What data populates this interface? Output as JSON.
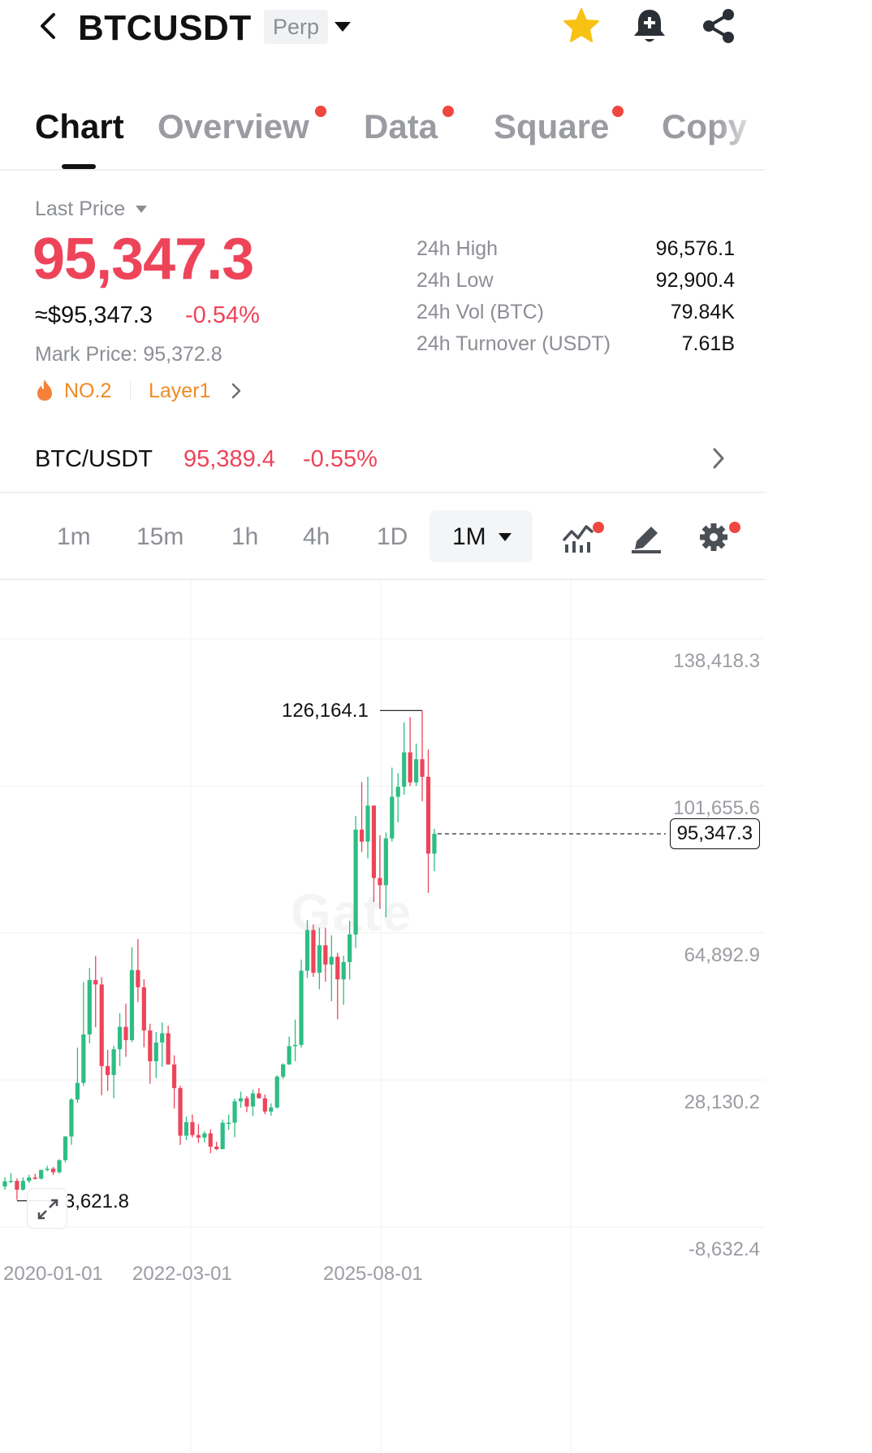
{
  "header": {
    "symbol": "BTCUSDT",
    "badge": "Perp",
    "icons": [
      "back-arrow-icon",
      "caret-down-icon",
      "star-icon",
      "bell-plus-icon",
      "share-icon"
    ],
    "star_color": "#f8c214"
  },
  "tabs": [
    {
      "label": "Chart",
      "active": true,
      "dot": false
    },
    {
      "label": "Overview",
      "active": false,
      "dot": true
    },
    {
      "label": "Data",
      "active": false,
      "dot": true
    },
    {
      "label": "Square",
      "active": false,
      "dot": true
    },
    {
      "label": "Copy",
      "active": false,
      "dot": false
    }
  ],
  "price": {
    "last_price_label": "Last Price",
    "last_price": "95,347.3",
    "usd_price": "≈$95,347.3",
    "change_pct": "-0.54%",
    "mark_price": "Mark Price:  95,372.8",
    "rank": "NO.2",
    "category": "Layer1"
  },
  "stats": [
    {
      "label": "24h High",
      "value": "96,576.1"
    },
    {
      "label": "24h Low",
      "value": "92,900.4"
    },
    {
      "label": "24h Vol (BTC)",
      "value": "79.84K"
    },
    {
      "label": "24h Turnover (USDT)",
      "value": "7.61B"
    }
  ],
  "spot": {
    "pair": "BTC/USDT",
    "price": "95,389.4",
    "change": "-0.55%"
  },
  "intervals": [
    "1m",
    "15m",
    "1h",
    "4h",
    "1D"
  ],
  "active_interval": "1M",
  "tools": [
    "indicators-icon",
    "draw-pencil-icon",
    "settings-gear-icon"
  ],
  "colors": {
    "up": "#2ebd85",
    "down": "#ee4459",
    "accent_orange": "#f08a24",
    "notification_dot": "#f0473f"
  },
  "chart": {
    "watermark": "Gate",
    "high_label": "126,164.1",
    "low_label": "3,621.8",
    "current_label": "95,347.3",
    "y_ticks": [
      "138,418.3",
      "101,655.6",
      "64,892.9",
      "28,130.2",
      "-8,632.4"
    ],
    "x_ticks": [
      "2020-01-01",
      "2022-03-01",
      "2025-08-01"
    ]
  },
  "chart_data": {
    "type": "candlestick",
    "interval": "1M",
    "y_ticks": [
      138418.3,
      101655.6,
      64892.9,
      28130.2,
      -8632.4
    ],
    "ylim": [
      -8632.4,
      138418.3
    ],
    "max_marker": 126164.1,
    "min_marker": 3621.8,
    "last_price": 95347.3,
    "x_ticks": [
      "2020-01-01",
      "2022-03-01",
      "2025-08-01"
    ],
    "candles": [
      [
        7200,
        9500,
        6400,
        8500
      ],
      [
        8500,
        10500,
        8100,
        8600
      ],
      [
        8600,
        9200,
        3850,
        6400
      ],
      [
        6400,
        9500,
        6200,
        8600
      ],
      [
        8600,
        10100,
        8100,
        9450
      ],
      [
        9450,
        10400,
        8900,
        9130
      ],
      [
        9130,
        11400,
        9000,
        11330
      ],
      [
        11330,
        12400,
        11000,
        11640
      ],
      [
        11640,
        12100,
        10100,
        10770
      ],
      [
        10770,
        14000,
        10400,
        13780
      ],
      [
        13780,
        19800,
        13200,
        19700
      ],
      [
        19700,
        29300,
        17600,
        28950
      ],
      [
        28950,
        41900,
        28100,
        33100
      ],
      [
        33100,
        58300,
        32300,
        45200
      ],
      [
        45200,
        61800,
        43000,
        58800
      ],
      [
        58800,
        64800,
        47000,
        57700
      ],
      [
        57700,
        59500,
        30000,
        37300
      ],
      [
        37300,
        41300,
        31100,
        35050
      ],
      [
        35050,
        42400,
        29300,
        41500
      ],
      [
        41500,
        50500,
        37300,
        47100
      ],
      [
        47100,
        52900,
        39600,
        43800
      ],
      [
        43800,
        67000,
        43300,
        61300
      ],
      [
        61300,
        69000,
        53300,
        57000
      ],
      [
        57000,
        59000,
        42000,
        46200
      ],
      [
        46200,
        47900,
        32900,
        38500
      ],
      [
        38500,
        45800,
        34300,
        43200
      ],
      [
        43200,
        48200,
        37100,
        45500
      ],
      [
        45500,
        47400,
        37600,
        37700
      ],
      [
        37700,
        40000,
        26700,
        31800
      ],
      [
        31800,
        32400,
        17600,
        19900
      ],
      [
        19900,
        24700,
        18800,
        23300
      ],
      [
        23300,
        25200,
        19500,
        20050
      ],
      [
        20050,
        22800,
        18100,
        19430
      ],
      [
        19430,
        21000,
        18200,
        20490
      ],
      [
        20490,
        21500,
        15500,
        17160
      ],
      [
        17160,
        18400,
        16300,
        16540
      ],
      [
        16540,
        23900,
        16500,
        23130
      ],
      [
        23130,
        25200,
        21400,
        23150
      ],
      [
        23150,
        29200,
        19500,
        28470
      ],
      [
        28470,
        30900,
        26900,
        29250
      ],
      [
        29250,
        29800,
        25800,
        27200
      ],
      [
        27200,
        31400,
        24800,
        30470
      ],
      [
        30470,
        31800,
        29500,
        29230
      ],
      [
        29230,
        30200,
        25300,
        25940
      ],
      [
        25940,
        28000,
        24900,
        26960
      ],
      [
        26960,
        35000,
        26700,
        34650
      ],
      [
        34650,
        38000,
        34100,
        37720
      ],
      [
        37720,
        44700,
        37600,
        42280
      ],
      [
        42280,
        48900,
        38500,
        42580
      ],
      [
        42580,
        63900,
        41900,
        61130
      ],
      [
        61130,
        73800,
        59300,
        71290
      ],
      [
        71290,
        72700,
        59600,
        60640
      ],
      [
        60640,
        71900,
        56500,
        67490
      ],
      [
        67490,
        71900,
        58400,
        62680
      ],
      [
        62680,
        70000,
        53500,
        64620
      ],
      [
        64620,
        65600,
        49000,
        58970
      ],
      [
        58970,
        64900,
        52600,
        63300
      ],
      [
        63300,
        73600,
        58900,
        70200
      ],
      [
        70200,
        99800,
        66800,
        96400
      ],
      [
        96400,
        108300,
        90800,
        93400
      ],
      [
        93400,
        109600,
        89200,
        102400
      ],
      [
        102400,
        102500,
        78300,
        84300
      ],
      [
        84300,
        95000,
        76600,
        82500
      ],
      [
        82500,
        95700,
        74500,
        94200
      ],
      [
        94200,
        111900,
        93400,
        104600
      ],
      [
        104600,
        110500,
        98200,
        107100
      ],
      [
        107100,
        123200,
        105100,
        115700
      ],
      [
        115700,
        124500,
        107300,
        108200
      ],
      [
        108200,
        117900,
        107300,
        114000
      ],
      [
        114000,
        126100,
        103500,
        109600
      ],
      [
        109600,
        116400,
        80600,
        90400
      ],
      [
        90400,
        96600,
        86000,
        95347
      ]
    ]
  }
}
